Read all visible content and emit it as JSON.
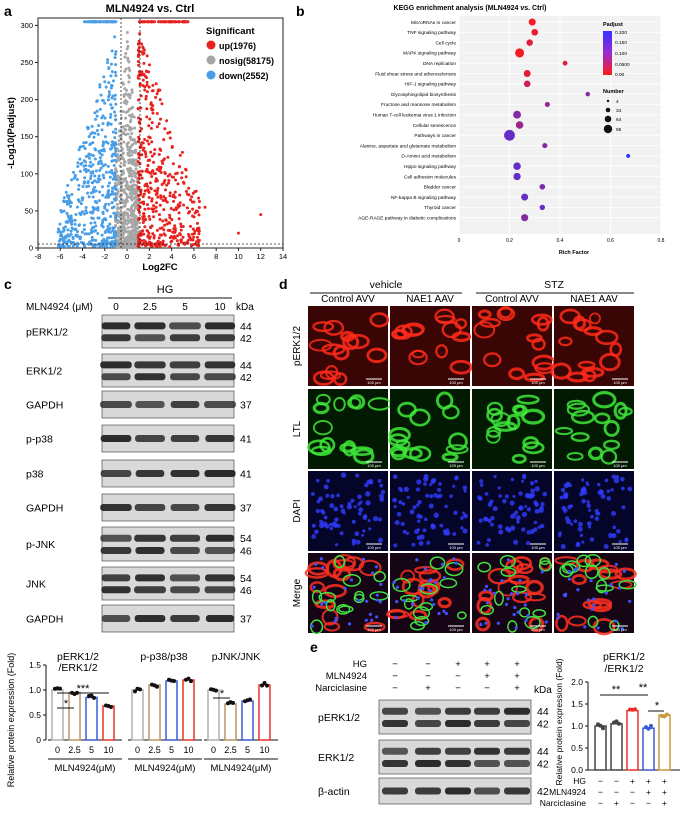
{
  "panels": {
    "a": "a",
    "b": "b",
    "c": "c",
    "d": "d",
    "e": "e"
  },
  "volcano": {
    "title": "MLN4924 vs. Ctrl",
    "xlabel": "Log2FC",
    "ylabel": "-Log10(Padjust)",
    "xticks": [
      "-8",
      "-6",
      "-4",
      "-2",
      "0",
      "2",
      "4",
      "6",
      "8",
      "10",
      "12",
      "14"
    ],
    "yticks": [
      "0",
      "50",
      "100",
      "150",
      "200",
      "250",
      "300"
    ],
    "legend_title": "Significant",
    "legend": [
      {
        "label": "up(1976)",
        "color": "#e8231f"
      },
      {
        "label": "nosig(58175)",
        "color": "#a6a6a6"
      },
      {
        "label": "down(2552)",
        "color": "#4a9ee8"
      }
    ]
  },
  "kegg": {
    "title": "KEGG enrichment analysis (MLN4924 vs. Ctrl)",
    "xlabel": "Rich Factor",
    "xticks": [
      "0",
      "0.2",
      "0.4",
      "0.6",
      "0.8"
    ],
    "padjust_title": "Padjust",
    "padjust_ticks": [
      "0.200",
      "0.150",
      "0.100",
      "0.0500",
      "0.00"
    ],
    "number_title": "Number",
    "number_ticks": [
      "4",
      "34",
      "64",
      "95"
    ]
  },
  "blots_c": {
    "hg_label": "HG",
    "dose_label": "MLN4924 (μM)",
    "doses": [
      "0",
      "2.5",
      "5",
      "10"
    ],
    "kda_label": "kDa",
    "rows": [
      {
        "label": "pERK1/2",
        "kda": [
          "44",
          "42"
        ]
      },
      {
        "label": "ERK1/2",
        "kda": [
          "44",
          "42"
        ]
      },
      {
        "label": "GAPDH",
        "kda": [
          "37"
        ]
      },
      {
        "label": "p-p38",
        "kda": [
          "41"
        ]
      },
      {
        "label": "p38",
        "kda": [
          "41"
        ]
      },
      {
        "label": "GAPDH",
        "kda": [
          "37"
        ]
      },
      {
        "label": "p-JNK",
        "kda": [
          "54",
          "46"
        ]
      },
      {
        "label": "JNK",
        "kda": [
          "54",
          "46"
        ]
      },
      {
        "label": "GAPDH",
        "kda": [
          "37"
        ]
      }
    ]
  },
  "bars_c": {
    "ylabel": "Relative protein expression (Fold)",
    "yticks": [
      "0",
      "0.5",
      "1.0",
      "1.5"
    ],
    "xlabel": "MLN4924(μM)",
    "groups": [
      {
        "title": "pERK1/2 /ERK1/2",
        "values": [
          1.0,
          0.95,
          0.85,
          0.68
        ],
        "sig": [
          "*",
          "***"
        ]
      },
      {
        "title": "p-p38/p38",
        "values": [
          1.0,
          1.1,
          1.18,
          1.2
        ],
        "sig": []
      },
      {
        "title": "pJNK/JNK",
        "values": [
          1.0,
          0.72,
          0.78,
          1.1
        ],
        "sig": [
          "*"
        ]
      }
    ],
    "categories": [
      "0",
      "2.5",
      "5",
      "10"
    ],
    "colors": [
      "#b0b0b0",
      "#b8956a",
      "#3a5bd9",
      "#e8312a"
    ]
  },
  "if_d": {
    "groups": [
      "vehicle",
      "STZ"
    ],
    "columns": [
      "Control AVV",
      "NAE1 AAV",
      "Control AVV",
      "NAE1 AAV"
    ],
    "rows": [
      "pERK1/2",
      "LTL",
      "DAPI",
      "Merge"
    ],
    "scale": "100 μm"
  },
  "blots_e": {
    "conditions": [
      {
        "label": "HG",
        "signs": [
          "−",
          "−",
          "+",
          "+",
          "+"
        ]
      },
      {
        "label": "MLN4924",
        "signs": [
          "−",
          "−",
          "−",
          "+",
          "+"
        ]
      },
      {
        "label": "Narciclasine",
        "signs": [
          "−",
          "+",
          "−",
          "−",
          "+"
        ]
      }
    ],
    "kda_label": "kDa",
    "rows": [
      {
        "label": "pERK1/2",
        "kda": [
          "44",
          "42"
        ]
      },
      {
        "label": "ERK1/2",
        "kda": [
          "44",
          "42"
        ]
      },
      {
        "label": "β-actin",
        "kda": [
          "42"
        ]
      }
    ]
  },
  "bars_e": {
    "title": "pERK1/2 /ERK1/2",
    "ylabel": "Relative protein expression (Fold)",
    "yticks": [
      "0.0",
      "0.5",
      "1.0",
      "1.5",
      "2.0"
    ],
    "values": [
      1.0,
      1.05,
      1.35,
      0.95,
      1.25
    ],
    "colors": [
      "#444444",
      "#444444",
      "#e8312a",
      "#3a5bd9",
      "#c89a3c"
    ],
    "sig": [
      "**",
      "**",
      "*"
    ],
    "conditions": [
      {
        "label": "HG",
        "signs": [
          "−",
          "−",
          "+",
          "+",
          "+"
        ]
      },
      {
        "label": "MLN4924",
        "signs": [
          "−",
          "−",
          "−",
          "+",
          "+"
        ]
      },
      {
        "label": "Narciclasine",
        "signs": [
          "−",
          "+",
          "−",
          "−",
          "+"
        ]
      }
    ]
  },
  "chart_data": [
    {
      "type": "scatter",
      "title": "MLN4924 vs. Ctrl",
      "xlabel": "Log2FC",
      "ylabel": "-Log10(Padjust)",
      "xlim": [
        -8,
        14
      ],
      "ylim": [
        0,
        310
      ],
      "series": [
        {
          "name": "up(1976)"
        },
        {
          "name": "nosig(58175)"
        },
        {
          "name": "down(2552)"
        }
      ]
    },
    {
      "type": "scatter",
      "title": "KEGG enrichment analysis (MLN4924 vs. Ctrl)",
      "xlabel": "Rich Factor",
      "xlim": [
        0,
        0.8
      ],
      "categories": [
        "MicroRNAs in cancer",
        "TNF signaling pathway",
        "Cell cycle",
        "MAPK signaling pathway",
        "DNA replication",
        "Fluid shear stress and atherosclerosis",
        "HIF-1 signaling pathway",
        "Glycosphingolipid biosynthesis",
        "Fructose and mannose metabolism",
        "Human T-cell leukemia virus 1 infection",
        "Cellular senescence",
        "Pathways in cancer",
        "Alanine, aspartate and glutamate metabolism",
        "D-Amino acid metabolism",
        "Hippo signaling pathway",
        "Cell adhesion molecules",
        "Bladder cancer",
        "NF-kappa B signaling pathway",
        "Thyroid cancer",
        "AGE-RAGE pathway in diabetic complications"
      ],
      "x": [
        0.29,
        0.3,
        0.28,
        0.24,
        0.42,
        0.27,
        0.27,
        0.51,
        0.35,
        0.23,
        0.24,
        0.2,
        0.34,
        0.67,
        0.23,
        0.23,
        0.33,
        0.26,
        0.33,
        0.26
      ],
      "padjust": [
        0.01,
        0.02,
        0.03,
        0.01,
        0.03,
        0.03,
        0.05,
        0.12,
        0.1,
        0.12,
        0.1,
        0.15,
        0.12,
        0.2,
        0.15,
        0.15,
        0.13,
        0.15,
        0.15,
        0.12
      ],
      "number": [
        30,
        25,
        22,
        60,
        8,
        28,
        24,
        6,
        10,
        40,
        36,
        95,
        10,
        4,
        36,
        32,
        14,
        28,
        12,
        30
      ]
    },
    {
      "type": "bar",
      "title": "pERK1/2 /ERK1/2",
      "categories": [
        "0",
        "2.5",
        "5",
        "10"
      ],
      "values": [
        1.0,
        0.95,
        0.85,
        0.68
      ],
      "ylim": [
        0,
        1.5
      ]
    },
    {
      "type": "bar",
      "title": "p-p38/p38",
      "categories": [
        "0",
        "2.5",
        "5",
        "10"
      ],
      "values": [
        1.0,
        1.1,
        1.18,
        1.2
      ],
      "ylim": [
        0,
        1.5
      ]
    },
    {
      "type": "bar",
      "title": "pJNK/JNK",
      "categories": [
        "0",
        "2.5",
        "5",
        "10"
      ],
      "values": [
        1.0,
        0.72,
        0.78,
        1.1
      ],
      "ylim": [
        0,
        1.5
      ]
    },
    {
      "type": "bar",
      "title": "pERK1/2 /ERK1/2",
      "categories": [
        "1",
        "2",
        "3",
        "4",
        "5"
      ],
      "values": [
        1.0,
        1.05,
        1.35,
        0.95,
        1.25
      ],
      "ylim": [
        0,
        2.0
      ]
    }
  ]
}
